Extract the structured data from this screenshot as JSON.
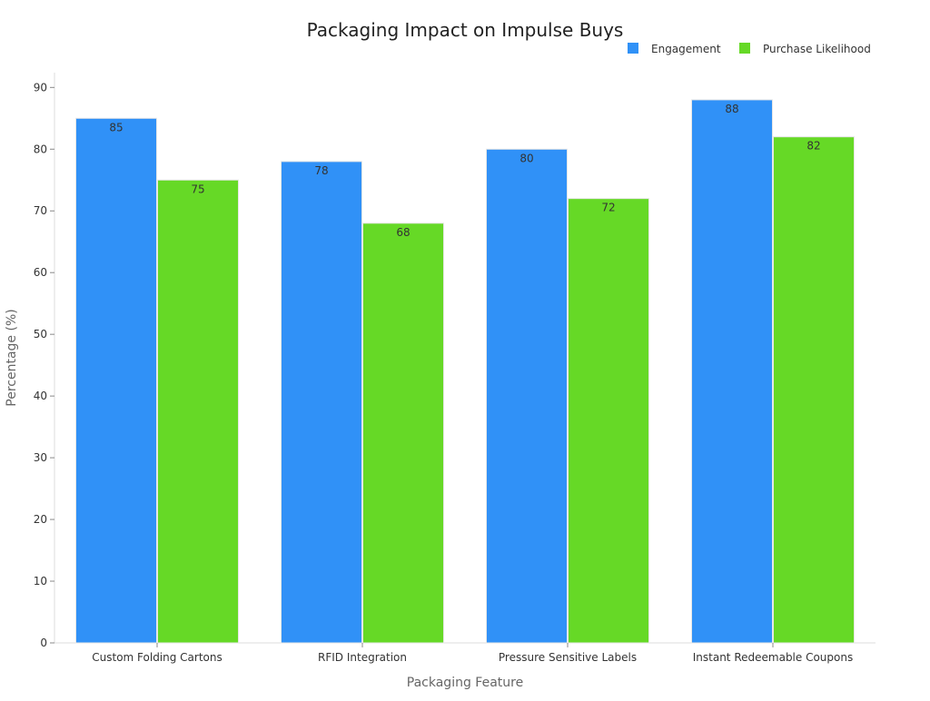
{
  "chart_data": {
    "type": "bar",
    "title": "Packaging Impact on Impulse Buys",
    "xlabel": "Packaging Feature",
    "ylabel": "Percentage (%)",
    "categories": [
      "Custom Folding Cartons",
      "RFID Integration",
      "Pressure Sensitive Labels",
      "Instant Redeemable Coupons"
    ],
    "series": [
      {
        "name": "Engagement",
        "color": "#3091f7",
        "values": [
          85,
          78,
          80,
          88
        ]
      },
      {
        "name": "Purchase Likelihood",
        "color": "#66d926",
        "values": [
          75,
          68,
          72,
          82
        ]
      }
    ],
    "ylim": [
      0,
      92.4
    ],
    "yticks": [
      0,
      10,
      20,
      30,
      40,
      50,
      60,
      70,
      80,
      90
    ],
    "grid": false,
    "legend_position": "top-right",
    "data_labels": true
  }
}
